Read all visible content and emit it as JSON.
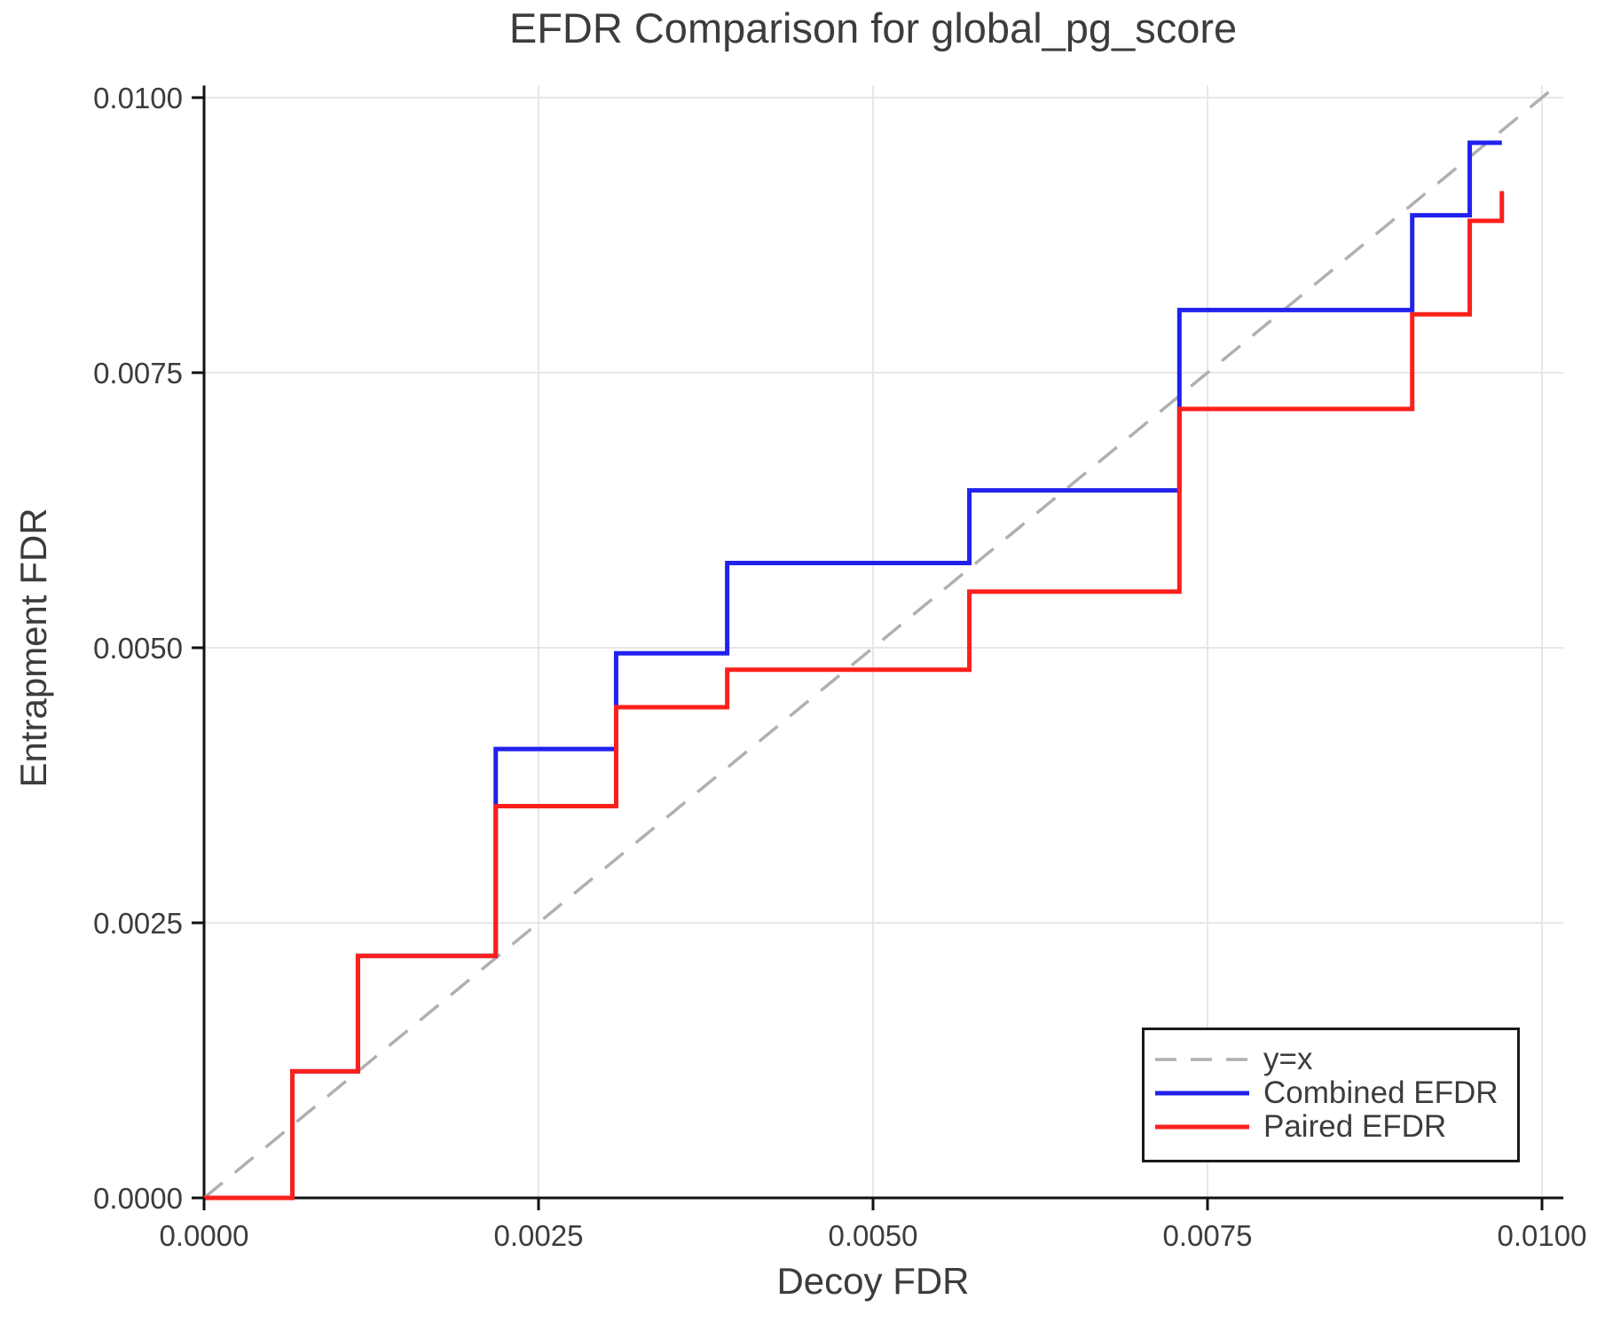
{
  "page": {
    "background": "#ffffff"
  },
  "chart_data": {
    "type": "line",
    "line_style": "step-post",
    "title": "EFDR Comparison for global_pg_score",
    "xlabel": "Decoy FDR",
    "ylabel": "Entrapment FDR",
    "xlim": [
      0,
      0.01016
    ],
    "ylim": [
      0,
      0.01011
    ],
    "xticks": [
      0.0,
      0.0025,
      0.005,
      0.0075,
      0.01
    ],
    "yticks": [
      0.0,
      0.0025,
      0.005,
      0.0075,
      0.01
    ],
    "tick_decimals": 4,
    "grid": "on",
    "grid_color": "#e7e7e7",
    "axis_color": "#111111",
    "text_color": "#3c3c3c",
    "legend_position": "lower right",
    "reference_line": {
      "label": "y=x",
      "color": "#b0b0b0",
      "dashed": true,
      "points": [
        [
          0,
          0
        ],
        [
          0.01011,
          0.01011
        ]
      ]
    },
    "series": [
      {
        "name": "Combined EFDR",
        "color": "#2121ee",
        "points": [
          [
            0,
            0
          ],
          [
            0.00066,
            0
          ],
          [
            0.00066,
            0.00115
          ],
          [
            0.00115,
            0.00115
          ],
          [
            0.00115,
            0.0022
          ],
          [
            0.00218,
            0.0022
          ],
          [
            0.00218,
            0.00408
          ],
          [
            0.00308,
            0.00408
          ],
          [
            0.00308,
            0.00495
          ],
          [
            0.00391,
            0.00495
          ],
          [
            0.00391,
            0.00577
          ],
          [
            0.00572,
            0.00577
          ],
          [
            0.00572,
            0.00643
          ],
          [
            0.00729,
            0.00643
          ],
          [
            0.00729,
            0.00807
          ],
          [
            0.00903,
            0.00807
          ],
          [
            0.00903,
            0.00893
          ],
          [
            0.00946,
            0.00893
          ],
          [
            0.00946,
            0.00959
          ],
          [
            0.0097,
            0.00959
          ]
        ]
      },
      {
        "name": "Paired EFDR",
        "color": "#fb201c",
        "points": [
          [
            0,
            0
          ],
          [
            0.00066,
            0
          ],
          [
            0.00066,
            0.00115
          ],
          [
            0.00115,
            0.00115
          ],
          [
            0.00115,
            0.0022
          ],
          [
            0.00218,
            0.0022
          ],
          [
            0.00218,
            0.00356
          ],
          [
            0.00308,
            0.00356
          ],
          [
            0.00308,
            0.00446
          ],
          [
            0.00391,
            0.00446
          ],
          [
            0.00391,
            0.0048
          ],
          [
            0.00572,
            0.0048
          ],
          [
            0.00572,
            0.00551
          ],
          [
            0.00729,
            0.00551
          ],
          [
            0.00729,
            0.00717
          ],
          [
            0.00903,
            0.00717
          ],
          [
            0.00903,
            0.00803
          ],
          [
            0.00946,
            0.00803
          ],
          [
            0.00946,
            0.00888
          ],
          [
            0.0097,
            0.00888
          ],
          [
            0.0097,
            0.00915
          ]
        ]
      }
    ]
  }
}
